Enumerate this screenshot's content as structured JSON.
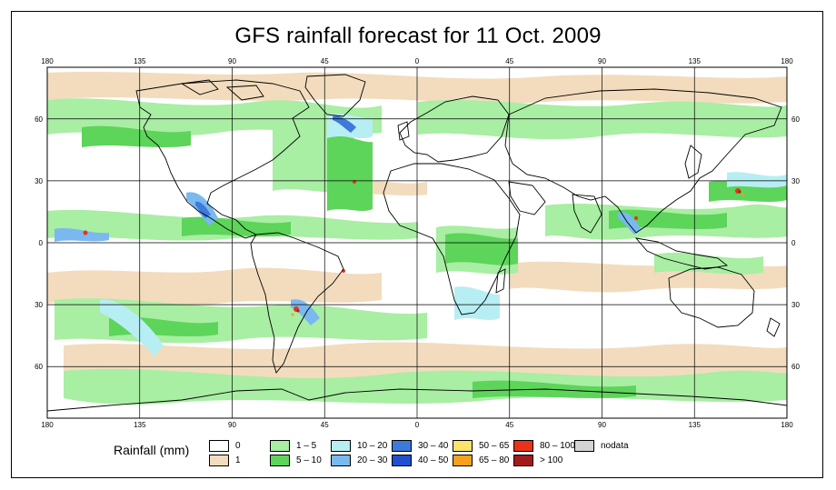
{
  "title": "GFS rainfall forecast for 11 Oct. 2009",
  "map": {
    "lon_ticks_top": [
      "180",
      "135",
      "90",
      "45",
      "0",
      "45",
      "90",
      "135",
      "180"
    ],
    "lon_ticks_bottom": [
      "180",
      "135",
      "90",
      "45",
      "0",
      "45",
      "90",
      "135",
      "180"
    ],
    "lat_ticks_left": [
      "60",
      "30",
      "0",
      "30",
      "60"
    ],
    "lat_ticks_right": [
      "60",
      "30",
      "0",
      "30",
      "60"
    ],
    "lon_values": [
      -180,
      -135,
      -90,
      -45,
      0,
      45,
      90,
      135,
      180
    ],
    "lat_values": [
      60,
      30,
      0,
      -30,
      -60
    ],
    "extent": {
      "lon": [
        -180,
        180
      ],
      "lat": [
        -85,
        85
      ]
    },
    "grid": true
  },
  "legend": {
    "title": "Rainfall (mm)",
    "items": [
      {
        "label": "0",
        "color": "#ffffff"
      },
      {
        "label": "1",
        "color": "#f2dcbd"
      },
      {
        "label": "1 – 5",
        "color": "#a8eea3"
      },
      {
        "label": "5 – 10",
        "color": "#5dd45a"
      },
      {
        "label": "10 – 20",
        "color": "#b7eef3"
      },
      {
        "label": "20 – 30",
        "color": "#7ab8f0"
      },
      {
        "label": "30 – 40",
        "color": "#3e79dc"
      },
      {
        "label": "40 – 50",
        "color": "#1f4fd0"
      },
      {
        "label": "50 – 65",
        "color": "#fde26b"
      },
      {
        "label": "65 – 80",
        "color": "#f8a21c"
      },
      {
        "label": "80 – 100",
        "color": "#e8321c"
      },
      {
        "label": "> 100",
        "color": "#a4191b"
      },
      {
        "label": "nodata",
        "color": "#d4d4d4"
      }
    ]
  }
}
